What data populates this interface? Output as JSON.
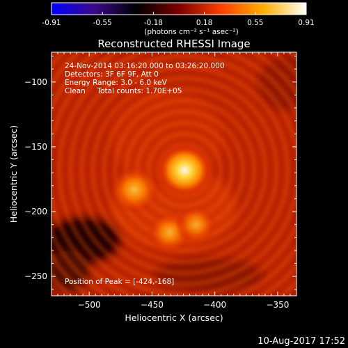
{
  "colorbar": {
    "ticks": [
      "-0.91",
      "-0.55",
      "-0.18",
      "0.18",
      "0.55",
      "0.91"
    ],
    "units_label": "(photons cm⁻² s⁻¹ asec⁻²)",
    "colors": [
      "#0000ff",
      "#3a0a8a",
      "#000000",
      "#7a0000",
      "#ff4000",
      "#ffb000",
      "#ffffff"
    ]
  },
  "chart_data": {
    "type": "heatmap",
    "title": "Reconstructed RHESSI Image",
    "xlabel": "Heliocentric X (arcsec)",
    "ylabel": "Heliocentric Y (arcsec)",
    "xlim": [
      -530,
      -335
    ],
    "ylim": [
      -265,
      -77
    ],
    "x_ticks": [
      -500,
      -450,
      -400,
      -350
    ],
    "x_tick_labels": [
      "−500",
      "−450",
      "−400",
      "−350"
    ],
    "y_ticks": [
      -100,
      -150,
      -200,
      -250
    ],
    "y_tick_labels": [
      "−100",
      "−150",
      "−200",
      "−250"
    ],
    "value_range": [
      -0.91,
      0.91
    ],
    "grid": false,
    "sources": [
      {
        "x": -424,
        "y": -168,
        "peak": 0.91
      },
      {
        "x": -464,
        "y": -183,
        "peak": 0.72
      },
      {
        "x": -436,
        "y": -216,
        "peak": 0.55
      },
      {
        "x": -415,
        "y": -210,
        "peak": 0.45
      }
    ],
    "annotations": [
      "24-Nov-2014 03:16:20.000 to 03:26:20.000",
      "Detectors: 3F 6F 9F, Att 0",
      "Energy Range: 3.0 - 6.0 keV",
      "Clean     Total counts: 1.70E+05"
    ],
    "peak_label": "Position of Peak = [-424,-168]"
  },
  "footer": {
    "timestamp": "10-Aug-2017 17:52"
  }
}
